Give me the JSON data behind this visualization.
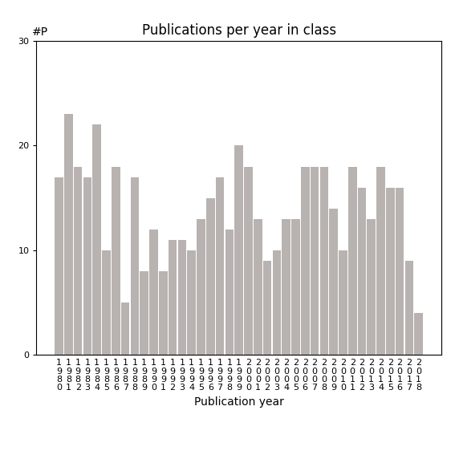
{
  "title": "Publications per year in class",
  "xlabel": "Publication year",
  "ylabel": "#P",
  "years": [
    1980,
    1981,
    1982,
    1983,
    1984,
    1985,
    1986,
    1987,
    1988,
    1989,
    1990,
    1991,
    1992,
    1993,
    1994,
    1995,
    1996,
    1997,
    1998,
    1999,
    2000,
    2001,
    2002,
    2003,
    2004,
    2005,
    2006,
    2007,
    2008,
    2009,
    2010,
    2011,
    2012,
    2013,
    2014,
    2015,
    2016,
    2017,
    2018
  ],
  "values": [
    17,
    23,
    18,
    17,
    22,
    10,
    18,
    5,
    17,
    8,
    12,
    8,
    11,
    11,
    10,
    13,
    15,
    17,
    12,
    20,
    18,
    13,
    9,
    10,
    13,
    13,
    18,
    18,
    18,
    14,
    10,
    18,
    16,
    13,
    18,
    16,
    16,
    9,
    4
  ],
  "bar_color": "#b8b3b0",
  "ylim": [
    0,
    30
  ],
  "yticks": [
    0,
    10,
    20,
    30
  ],
  "background_color": "#ffffff",
  "title_fontsize": 12,
  "axis_label_fontsize": 10,
  "tick_fontsize": 8
}
